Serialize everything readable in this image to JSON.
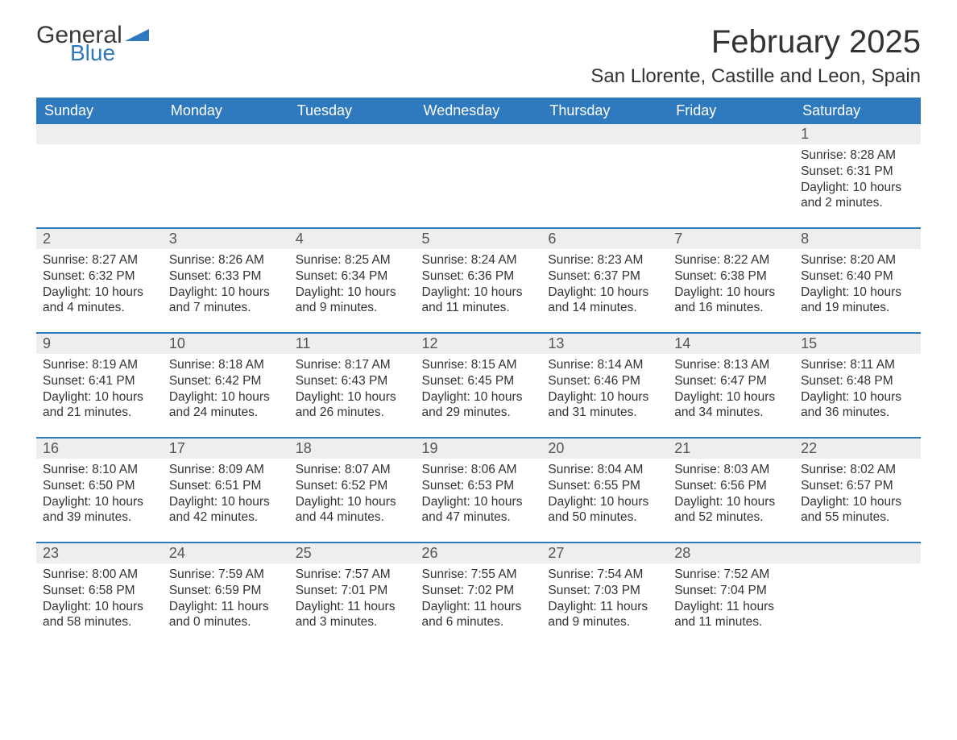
{
  "logo": {
    "text1": "General",
    "text2": "Blue",
    "tri_color": "#2f79bf"
  },
  "title": "February 2025",
  "location": "San Llorente, Castille and Leon, Spain",
  "colors": {
    "header_bg": "#2f79bf",
    "header_text": "#ffffff",
    "daynum_bg": "#eeeeee",
    "row_divider": "#2f79bf",
    "body_text": "#333333",
    "background": "#ffffff"
  },
  "weekdays": [
    "Sunday",
    "Monday",
    "Tuesday",
    "Wednesday",
    "Thursday",
    "Friday",
    "Saturday"
  ],
  "weeks": [
    [
      null,
      null,
      null,
      null,
      null,
      null,
      {
        "n": "1",
        "sr": "Sunrise: 8:28 AM",
        "ss": "Sunset: 6:31 PM",
        "dl": "Daylight: 10 hours and 2 minutes."
      }
    ],
    [
      {
        "n": "2",
        "sr": "Sunrise: 8:27 AM",
        "ss": "Sunset: 6:32 PM",
        "dl": "Daylight: 10 hours and 4 minutes."
      },
      {
        "n": "3",
        "sr": "Sunrise: 8:26 AM",
        "ss": "Sunset: 6:33 PM",
        "dl": "Daylight: 10 hours and 7 minutes."
      },
      {
        "n": "4",
        "sr": "Sunrise: 8:25 AM",
        "ss": "Sunset: 6:34 PM",
        "dl": "Daylight: 10 hours and 9 minutes."
      },
      {
        "n": "5",
        "sr": "Sunrise: 8:24 AM",
        "ss": "Sunset: 6:36 PM",
        "dl": "Daylight: 10 hours and 11 minutes."
      },
      {
        "n": "6",
        "sr": "Sunrise: 8:23 AM",
        "ss": "Sunset: 6:37 PM",
        "dl": "Daylight: 10 hours and 14 minutes."
      },
      {
        "n": "7",
        "sr": "Sunrise: 8:22 AM",
        "ss": "Sunset: 6:38 PM",
        "dl": "Daylight: 10 hours and 16 minutes."
      },
      {
        "n": "8",
        "sr": "Sunrise: 8:20 AM",
        "ss": "Sunset: 6:40 PM",
        "dl": "Daylight: 10 hours and 19 minutes."
      }
    ],
    [
      {
        "n": "9",
        "sr": "Sunrise: 8:19 AM",
        "ss": "Sunset: 6:41 PM",
        "dl": "Daylight: 10 hours and 21 minutes."
      },
      {
        "n": "10",
        "sr": "Sunrise: 8:18 AM",
        "ss": "Sunset: 6:42 PM",
        "dl": "Daylight: 10 hours and 24 minutes."
      },
      {
        "n": "11",
        "sr": "Sunrise: 8:17 AM",
        "ss": "Sunset: 6:43 PM",
        "dl": "Daylight: 10 hours and 26 minutes."
      },
      {
        "n": "12",
        "sr": "Sunrise: 8:15 AM",
        "ss": "Sunset: 6:45 PM",
        "dl": "Daylight: 10 hours and 29 minutes."
      },
      {
        "n": "13",
        "sr": "Sunrise: 8:14 AM",
        "ss": "Sunset: 6:46 PM",
        "dl": "Daylight: 10 hours and 31 minutes."
      },
      {
        "n": "14",
        "sr": "Sunrise: 8:13 AM",
        "ss": "Sunset: 6:47 PM",
        "dl": "Daylight: 10 hours and 34 minutes."
      },
      {
        "n": "15",
        "sr": "Sunrise: 8:11 AM",
        "ss": "Sunset: 6:48 PM",
        "dl": "Daylight: 10 hours and 36 minutes."
      }
    ],
    [
      {
        "n": "16",
        "sr": "Sunrise: 8:10 AM",
        "ss": "Sunset: 6:50 PM",
        "dl": "Daylight: 10 hours and 39 minutes."
      },
      {
        "n": "17",
        "sr": "Sunrise: 8:09 AM",
        "ss": "Sunset: 6:51 PM",
        "dl": "Daylight: 10 hours and 42 minutes."
      },
      {
        "n": "18",
        "sr": "Sunrise: 8:07 AM",
        "ss": "Sunset: 6:52 PM",
        "dl": "Daylight: 10 hours and 44 minutes."
      },
      {
        "n": "19",
        "sr": "Sunrise: 8:06 AM",
        "ss": "Sunset: 6:53 PM",
        "dl": "Daylight: 10 hours and 47 minutes."
      },
      {
        "n": "20",
        "sr": "Sunrise: 8:04 AM",
        "ss": "Sunset: 6:55 PM",
        "dl": "Daylight: 10 hours and 50 minutes."
      },
      {
        "n": "21",
        "sr": "Sunrise: 8:03 AM",
        "ss": "Sunset: 6:56 PM",
        "dl": "Daylight: 10 hours and 52 minutes."
      },
      {
        "n": "22",
        "sr": "Sunrise: 8:02 AM",
        "ss": "Sunset: 6:57 PM",
        "dl": "Daylight: 10 hours and 55 minutes."
      }
    ],
    [
      {
        "n": "23",
        "sr": "Sunrise: 8:00 AM",
        "ss": "Sunset: 6:58 PM",
        "dl": "Daylight: 10 hours and 58 minutes."
      },
      {
        "n": "24",
        "sr": "Sunrise: 7:59 AM",
        "ss": "Sunset: 6:59 PM",
        "dl": "Daylight: 11 hours and 0 minutes."
      },
      {
        "n": "25",
        "sr": "Sunrise: 7:57 AM",
        "ss": "Sunset: 7:01 PM",
        "dl": "Daylight: 11 hours and 3 minutes."
      },
      {
        "n": "26",
        "sr": "Sunrise: 7:55 AM",
        "ss": "Sunset: 7:02 PM",
        "dl": "Daylight: 11 hours and 6 minutes."
      },
      {
        "n": "27",
        "sr": "Sunrise: 7:54 AM",
        "ss": "Sunset: 7:03 PM",
        "dl": "Daylight: 11 hours and 9 minutes."
      },
      {
        "n": "28",
        "sr": "Sunrise: 7:52 AM",
        "ss": "Sunset: 7:04 PM",
        "dl": "Daylight: 11 hours and 11 minutes."
      },
      null
    ]
  ]
}
